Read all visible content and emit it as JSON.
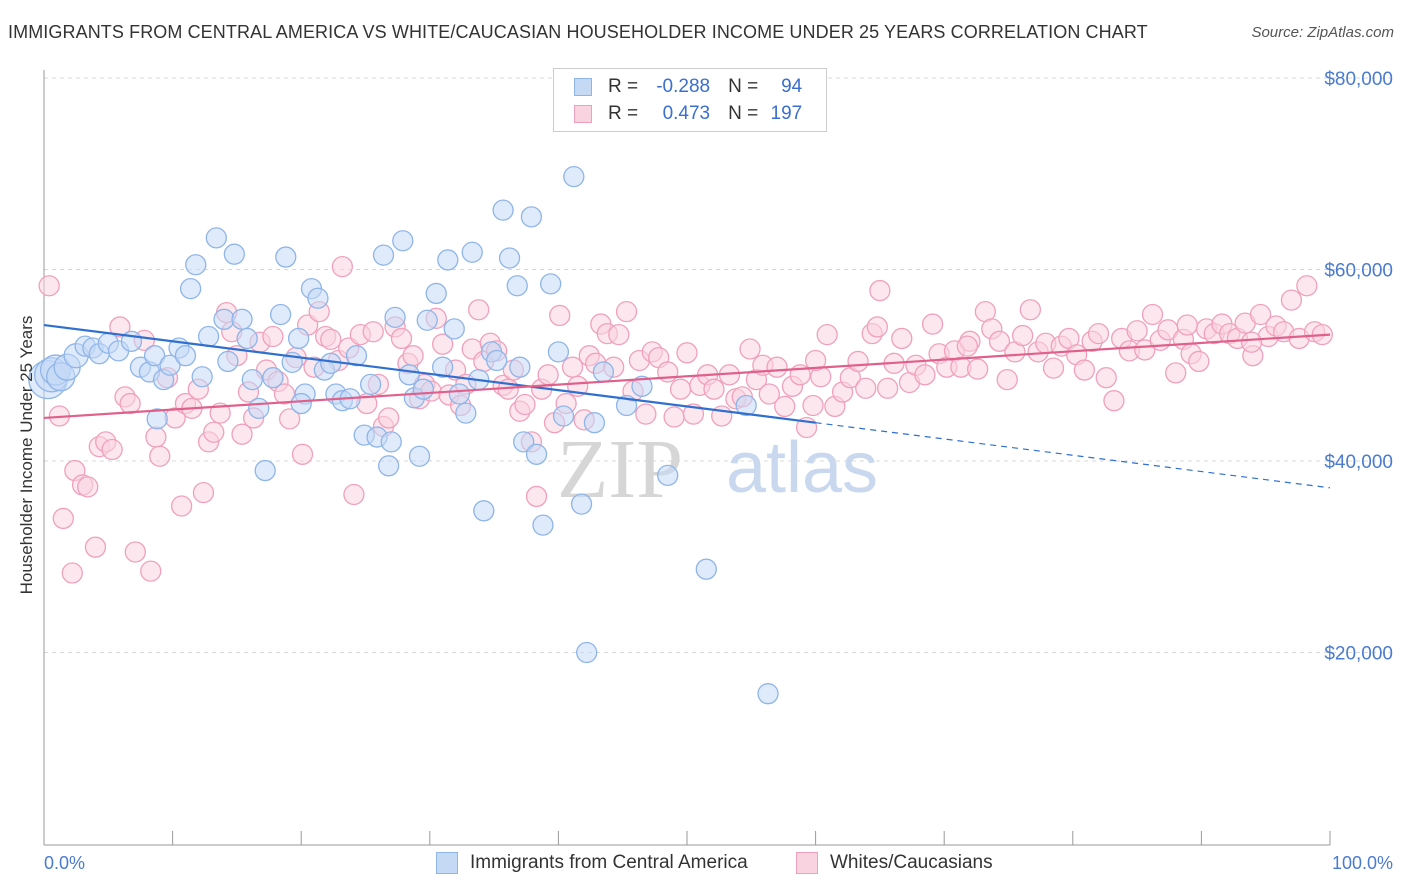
{
  "title": "IMMIGRANTS FROM CENTRAL AMERICA VS WHITE/CAUCASIAN HOUSEHOLDER INCOME UNDER 25 YEARS CORRELATION CHART",
  "source": "Source: ZipAtlas.com",
  "watermark": {
    "zip": "ZIP",
    "atlas": "atlas"
  },
  "colors": {
    "blue": "#8fb5e8",
    "blue_fill": "#c5d9f5",
    "blue_line": "#2f6fd0",
    "pink": "#f0a0bc",
    "pink_fill": "#f9d3e0",
    "pink_line": "#e0608c",
    "tick_text": "#4a7bd0",
    "grid": "#d8d8d8"
  },
  "legend": {
    "rows": [
      {
        "r_label": "R =",
        "r_value": "-0.288",
        "n_label": "N =",
        "n_value": "94"
      },
      {
        "r_label": "R =",
        "r_value": "0.473",
        "n_label": "N =",
        "n_value": "197"
      }
    ]
  },
  "bottom_legend": {
    "series1": "Immigrants from Central America",
    "series2": "Whites/Caucasians"
  },
  "chart_data": {
    "type": "scatter",
    "title": "IMMIGRANTS FROM CENTRAL AMERICA VS WHITE/CAUCASIAN HOUSEHOLDER INCOME UNDER 25 YEARS CORRELATION CHART",
    "xlabel": "",
    "ylabel": "Householder Income Under 25 Years",
    "xlim": [
      0,
      100
    ],
    "ylim": [
      0,
      82000
    ],
    "x_tick_labels": [
      "0.0%",
      "100.0%"
    ],
    "y_ticks": [
      20000,
      40000,
      60000,
      80000
    ],
    "y_tick_labels": [
      "$20,000",
      "$40,000",
      "$60,000",
      "$80,000"
    ],
    "grid": true,
    "legend_position": "top-center",
    "series": [
      {
        "name": "Immigrants from Central America",
        "color": "#8fb5e8",
        "trend": {
          "x": [
            0,
            60
          ],
          "y": [
            54200,
            44000
          ],
          "dashed_to": [
            100,
            37200
          ]
        },
        "points": [
          [
            0.3,
            48500
          ],
          [
            0.6,
            49000
          ],
          [
            0.9,
            49500
          ],
          [
            1.3,
            48800
          ],
          [
            1.8,
            49800
          ],
          [
            2.5,
            51000
          ],
          [
            3.2,
            52000
          ],
          [
            3.8,
            51800
          ],
          [
            4.3,
            51200
          ],
          [
            5.0,
            52300
          ],
          [
            5.8,
            51500
          ],
          [
            6.8,
            52500
          ],
          [
            7.5,
            49800
          ],
          [
            8.2,
            49300
          ],
          [
            8.6,
            51000
          ],
          [
            9.3,
            48500
          ],
          [
            9.8,
            50000
          ],
          [
            10.5,
            51800
          ],
          [
            11.0,
            51000
          ],
          [
            11.4,
            58000
          ],
          [
            11.8,
            60500
          ],
          [
            12.3,
            48800
          ],
          [
            12.8,
            53000
          ],
          [
            13.4,
            63300
          ],
          [
            14.0,
            54800
          ],
          [
            14.3,
            50400
          ],
          [
            14.8,
            61600
          ],
          [
            15.4,
            54800
          ],
          [
            15.8,
            52800
          ],
          [
            16.2,
            48500
          ],
          [
            16.7,
            45500
          ],
          [
            17.2,
            39000
          ],
          [
            17.8,
            48700
          ],
          [
            18.4,
            55300
          ],
          [
            18.8,
            61300
          ],
          [
            19.3,
            50300
          ],
          [
            19.8,
            52800
          ],
          [
            20.3,
            47000
          ],
          [
            20.8,
            58000
          ],
          [
            21.3,
            57000
          ],
          [
            21.8,
            49500
          ],
          [
            22.3,
            50200
          ],
          [
            22.7,
            47000
          ],
          [
            23.2,
            46300
          ],
          [
            23.8,
            46500
          ],
          [
            24.3,
            51000
          ],
          [
            24.9,
            42700
          ],
          [
            25.4,
            48000
          ],
          [
            25.9,
            42500
          ],
          [
            26.4,
            61500
          ],
          [
            26.8,
            39500
          ],
          [
            27.3,
            55000
          ],
          [
            27.9,
            63000
          ],
          [
            28.4,
            49000
          ],
          [
            28.8,
            46600
          ],
          [
            29.2,
            40500
          ],
          [
            29.8,
            54700
          ],
          [
            30.5,
            57500
          ],
          [
            31.0,
            49800
          ],
          [
            31.4,
            61000
          ],
          [
            31.9,
            53800
          ],
          [
            32.3,
            47000
          ],
          [
            32.8,
            45000
          ],
          [
            33.3,
            61800
          ],
          [
            33.8,
            48500
          ],
          [
            34.2,
            34800
          ],
          [
            34.8,
            51400
          ],
          [
            35.2,
            50500
          ],
          [
            35.7,
            66200
          ],
          [
            36.2,
            61200
          ],
          [
            36.8,
            58300
          ],
          [
            37.3,
            42000
          ],
          [
            37.9,
            65500
          ],
          [
            38.3,
            40700
          ],
          [
            38.8,
            33300
          ],
          [
            39.4,
            58500
          ],
          [
            40.0,
            51400
          ],
          [
            40.4,
            44700
          ],
          [
            41.2,
            69700
          ],
          [
            41.8,
            35500
          ],
          [
            42.2,
            20000
          ],
          [
            42.8,
            44000
          ],
          [
            43.5,
            49300
          ],
          [
            45.3,
            45800
          ],
          [
            48.5,
            38500
          ],
          [
            51.5,
            28700
          ],
          [
            54.6,
            45800
          ],
          [
            56.3,
            15700
          ],
          [
            8.8,
            44400
          ],
          [
            20.0,
            46000
          ],
          [
            27.0,
            42000
          ],
          [
            37.0,
            49800
          ],
          [
            46.5,
            47800
          ],
          [
            29.5,
            47500
          ]
        ]
      },
      {
        "name": "Whites/Caucasians",
        "color": "#f0a0bc",
        "trend": {
          "x": [
            0,
            100
          ],
          "y": [
            44500,
            53200
          ]
        },
        "points": [
          [
            0.4,
            58300
          ],
          [
            1.2,
            44700
          ],
          [
            1.5,
            34000
          ],
          [
            2.2,
            28300
          ],
          [
            2.4,
            39000
          ],
          [
            3.0,
            37500
          ],
          [
            3.4,
            37300
          ],
          [
            4.0,
            31000
          ],
          [
            4.3,
            41500
          ],
          [
            4.8,
            42000
          ],
          [
            5.3,
            41200
          ],
          [
            5.9,
            54000
          ],
          [
            6.3,
            46700
          ],
          [
            6.7,
            46000
          ],
          [
            7.1,
            30500
          ],
          [
            7.8,
            52600
          ],
          [
            8.3,
            28500
          ],
          [
            8.7,
            42500
          ],
          [
            9.0,
            40500
          ],
          [
            9.6,
            48700
          ],
          [
            10.2,
            44500
          ],
          [
            10.7,
            35300
          ],
          [
            11.0,
            46000
          ],
          [
            11.5,
            45500
          ],
          [
            12.0,
            47500
          ],
          [
            12.4,
            36700
          ],
          [
            12.8,
            42000
          ],
          [
            13.2,
            43000
          ],
          [
            13.7,
            45000
          ],
          [
            14.2,
            55500
          ],
          [
            14.6,
            53500
          ],
          [
            15.0,
            51000
          ],
          [
            15.4,
            42800
          ],
          [
            15.9,
            47200
          ],
          [
            16.3,
            44500
          ],
          [
            16.8,
            52400
          ],
          [
            17.3,
            49500
          ],
          [
            17.8,
            53000
          ],
          [
            18.2,
            48300
          ],
          [
            18.7,
            47000
          ],
          [
            19.1,
            44400
          ],
          [
            19.6,
            50800
          ],
          [
            20.1,
            40700
          ],
          [
            20.5,
            54200
          ],
          [
            21.0,
            49800
          ],
          [
            21.4,
            55600
          ],
          [
            21.9,
            53000
          ],
          [
            22.3,
            52700
          ],
          [
            22.9,
            50500
          ],
          [
            23.2,
            60300
          ],
          [
            23.7,
            51800
          ],
          [
            24.1,
            36500
          ],
          [
            24.6,
            53200
          ],
          [
            25.1,
            46000
          ],
          [
            25.6,
            53500
          ],
          [
            26.0,
            48000
          ],
          [
            26.4,
            43600
          ],
          [
            26.8,
            44500
          ],
          [
            27.3,
            54000
          ],
          [
            27.8,
            52800
          ],
          [
            28.3,
            50200
          ],
          [
            28.7,
            51000
          ],
          [
            29.2,
            46500
          ],
          [
            29.6,
            48000
          ],
          [
            30.1,
            47300
          ],
          [
            30.5,
            54900
          ],
          [
            31.0,
            52200
          ],
          [
            31.5,
            46900
          ],
          [
            32.0,
            49500
          ],
          [
            32.4,
            45800
          ],
          [
            32.8,
            48000
          ],
          [
            33.3,
            51700
          ],
          [
            33.8,
            55800
          ],
          [
            34.2,
            50400
          ],
          [
            34.7,
            52300
          ],
          [
            35.2,
            51500
          ],
          [
            35.7,
            47900
          ],
          [
            36.1,
            47500
          ],
          [
            36.5,
            49500
          ],
          [
            37.0,
            45200
          ],
          [
            37.4,
            45900
          ],
          [
            37.9,
            42000
          ],
          [
            38.3,
            36300
          ],
          [
            38.7,
            47500
          ],
          [
            39.2,
            49000
          ],
          [
            39.7,
            44000
          ],
          [
            40.1,
            55200
          ],
          [
            40.6,
            46000
          ],
          [
            41.1,
            49800
          ],
          [
            41.5,
            47800
          ],
          [
            42.0,
            44300
          ],
          [
            42.4,
            51000
          ],
          [
            42.9,
            50200
          ],
          [
            43.3,
            54300
          ],
          [
            43.8,
            53300
          ],
          [
            44.3,
            49800
          ],
          [
            44.7,
            53200
          ],
          [
            45.3,
            55600
          ],
          [
            45.8,
            47300
          ],
          [
            46.3,
            50500
          ],
          [
            46.8,
            44900
          ],
          [
            47.3,
            51400
          ],
          [
            47.8,
            50800
          ],
          [
            48.5,
            49300
          ],
          [
            49.0,
            44600
          ],
          [
            49.5,
            47500
          ],
          [
            50.0,
            51300
          ],
          [
            50.5,
            44900
          ],
          [
            51.0,
            47900
          ],
          [
            51.6,
            49000
          ],
          [
            52.1,
            47500
          ],
          [
            52.7,
            44700
          ],
          [
            53.3,
            49000
          ],
          [
            53.8,
            46500
          ],
          [
            54.3,
            46700
          ],
          [
            54.9,
            51700
          ],
          [
            55.4,
            48500
          ],
          [
            55.9,
            50000
          ],
          [
            56.4,
            47000
          ],
          [
            57.0,
            49800
          ],
          [
            57.6,
            45700
          ],
          [
            58.2,
            47800
          ],
          [
            58.8,
            49000
          ],
          [
            59.3,
            43500
          ],
          [
            59.8,
            45800
          ],
          [
            60.4,
            48800
          ],
          [
            60.9,
            53200
          ],
          [
            61.5,
            45700
          ],
          [
            62.1,
            47200
          ],
          [
            62.7,
            48700
          ],
          [
            63.3,
            50400
          ],
          [
            63.9,
            47600
          ],
          [
            64.4,
            53300
          ],
          [
            65.0,
            57800
          ],
          [
            65.6,
            47600
          ],
          [
            66.1,
            50200
          ],
          [
            66.7,
            52800
          ],
          [
            67.3,
            48200
          ],
          [
            67.8,
            50000
          ],
          [
            68.5,
            49000
          ],
          [
            69.1,
            54300
          ],
          [
            69.6,
            51200
          ],
          [
            70.2,
            49800
          ],
          [
            70.8,
            51500
          ],
          [
            71.3,
            49800
          ],
          [
            72.0,
            52500
          ],
          [
            72.6,
            49600
          ],
          [
            73.2,
            55600
          ],
          [
            73.7,
            53800
          ],
          [
            74.3,
            52500
          ],
          [
            74.9,
            48500
          ],
          [
            75.5,
            51400
          ],
          [
            76.1,
            53100
          ],
          [
            76.7,
            55800
          ],
          [
            77.3,
            51400
          ],
          [
            77.9,
            52300
          ],
          [
            78.5,
            49700
          ],
          [
            79.1,
            52000
          ],
          [
            79.7,
            52800
          ],
          [
            80.3,
            51100
          ],
          [
            80.9,
            49500
          ],
          [
            81.5,
            52500
          ],
          [
            82.0,
            53300
          ],
          [
            82.6,
            48700
          ],
          [
            83.2,
            46300
          ],
          [
            83.8,
            52800
          ],
          [
            84.4,
            51500
          ],
          [
            85.0,
            53600
          ],
          [
            85.6,
            51600
          ],
          [
            86.2,
            55300
          ],
          [
            86.8,
            52600
          ],
          [
            87.4,
            53700
          ],
          [
            88.0,
            49200
          ],
          [
            88.6,
            52700
          ],
          [
            89.2,
            51200
          ],
          [
            89.8,
            50400
          ],
          [
            90.4,
            53800
          ],
          [
            91.0,
            53300
          ],
          [
            91.6,
            54300
          ],
          [
            92.2,
            53300
          ],
          [
            92.8,
            52800
          ],
          [
            93.4,
            54400
          ],
          [
            94.0,
            51000
          ],
          [
            94.6,
            55300
          ],
          [
            95.2,
            53000
          ],
          [
            95.8,
            54100
          ],
          [
            96.4,
            53500
          ],
          [
            97.0,
            56800
          ],
          [
            97.6,
            52800
          ],
          [
            98.2,
            58300
          ],
          [
            98.8,
            53500
          ],
          [
            99.4,
            53200
          ],
          [
            64.8,
            54000
          ],
          [
            71.8,
            52000
          ],
          [
            88.9,
            54200
          ],
          [
            60.0,
            50500
          ],
          [
            93.9,
            52400
          ]
        ]
      }
    ]
  }
}
